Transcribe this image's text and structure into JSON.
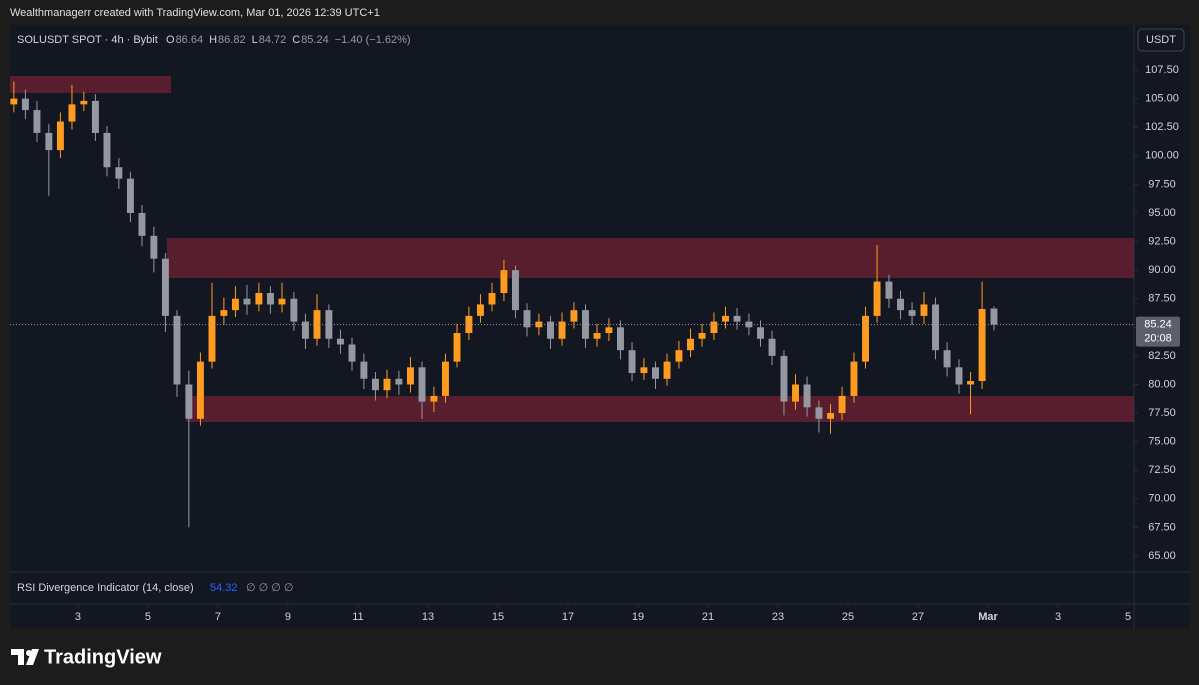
{
  "chart_data": {
    "type": "candlestick",
    "watermark": "Wealthmanagerr created with TradingView.com, Mar 01, 2026 12:39 UTC+1",
    "symbol": "SOLUSDT SPOT · 4h · Bybit",
    "ohlc_letters": [
      "O",
      "H",
      "L",
      "C"
    ],
    "change": "−1.40 (−1.62%)",
    "currency": "USDT",
    "countdown": "20:08",
    "indicator": "RSI Divergence Indicator (14, close)",
    "indicator_value": "54.32",
    "indicator_flags": "∅ ∅ ∅ ∅",
    "brand": "TradingView",
    "up_color": "#ff9b1f",
    "down_color": "#9598a1",
    "zone_color": "#b8283f",
    "grid": false,
    "xlim": [
      1.06,
      33.17
    ],
    "ylim": [
      63.6,
      111.44
    ],
    "xticks": [
      3,
      5,
      7,
      9,
      11,
      13,
      15,
      17,
      19,
      21,
      23,
      25,
      27,
      {
        "value": 29,
        "label": "Mar"
      },
      {
        "value": 31,
        "label": "3"
      },
      {
        "value": 33,
        "label": "5"
      }
    ],
    "yticks": [
      {
        "value": 65,
        "label": "65.00"
      },
      {
        "value": 67.5,
        "label": "67.50"
      },
      {
        "value": 70,
        "label": "70.00"
      },
      {
        "value": 72.5,
        "label": "72.50"
      },
      {
        "value": 75,
        "label": "75.00"
      },
      {
        "value": 77.5,
        "label": "77.50"
      },
      {
        "value": 80,
        "label": "80.00"
      },
      {
        "value": 82.5,
        "label": "82.50"
      },
      {
        "value": 85,
        "label": "85.00"
      },
      {
        "value": 87.5,
        "label": "87.50"
      },
      {
        "value": 90,
        "label": "90.00"
      },
      {
        "value": 92.5,
        "label": "92.50"
      },
      {
        "value": 95,
        "label": "95.00"
      },
      {
        "value": 97.5,
        "label": "97.50"
      },
      {
        "value": 100,
        "label": "100.00"
      },
      {
        "value": 102.5,
        "label": "102.50"
      },
      {
        "value": 105,
        "label": "105.00"
      },
      {
        "value": 107.5,
        "label": "107.50"
      }
    ],
    "zones": [
      {
        "x": [
          1.06,
          5.66
        ],
        "y": [
          105.49,
          106.98
        ]
      },
      {
        "x": [
          5.54,
          33.17
        ],
        "y": [
          89.31,
          92.81
        ]
      },
      {
        "x": [
          6.09,
          33.17
        ],
        "y": [
          76.72,
          78.99
        ]
      }
    ],
    "x": [
      1.17,
      1.5,
      1.83,
      2.17,
      2.5,
      2.83,
      3.17,
      3.5,
      3.83,
      4.17,
      4.5,
      4.83,
      5.17,
      5.5,
      5.83,
      6.17,
      6.5,
      6.83,
      7.17,
      7.5,
      7.83,
      8.17,
      8.5,
      8.83,
      9.17,
      9.5,
      9.83,
      10.17,
      10.5,
      10.83,
      11.17,
      11.5,
      11.83,
      12.17,
      12.5,
      12.83,
      13.17,
      13.5,
      13.83,
      14.17,
      14.5,
      14.83,
      15.17,
      15.5,
      15.83,
      16.17,
      16.5,
      16.83,
      17.17,
      17.5,
      17.83,
      18.17,
      18.5,
      18.83,
      19.17,
      19.5,
      19.83,
      20.17,
      20.5,
      20.83,
      21.17,
      21.5,
      21.83,
      22.17,
      22.5,
      22.83,
      23.17,
      23.5,
      23.83,
      24.17,
      24.5,
      24.83,
      25.17,
      25.5,
      25.83,
      26.17,
      26.5,
      26.83,
      27.17,
      27.5,
      27.83,
      28.17,
      28.5,
      28.83,
      29.17
    ],
    "open": [
      104.5,
      105,
      104,
      102,
      100.5,
      103,
      104.5,
      104.8,
      102,
      99,
      98,
      95,
      93,
      91,
      86,
      80,
      77,
      82,
      86,
      86.5,
      87.5,
      87,
      88,
      87,
      87.5,
      85.5,
      84,
      86.5,
      84,
      83.5,
      82,
      80.5,
      79.5,
      80.5,
      80,
      81.5,
      78.5,
      79,
      82,
      84.5,
      86,
      87,
      88,
      90,
      86.5,
      85,
      85.5,
      84,
      85.5,
      86.5,
      84,
      84.5,
      85,
      83,
      81,
      81.5,
      80.5,
      82,
      83,
      84,
      84.5,
      85.5,
      86,
      85.5,
      85,
      84,
      82.5,
      78.5,
      80,
      78,
      77,
      77.5,
      79,
      82,
      86,
      89,
      87.5,
      86.5,
      86,
      87,
      83,
      81.5,
      80,
      80.3,
      86.64
    ],
    "high": [
      106.5,
      105.8,
      104.8,
      102.8,
      103.8,
      106.2,
      105.6,
      105.4,
      102.6,
      99.8,
      98.6,
      95.7,
      93.8,
      91.5,
      86.5,
      81.2,
      82.8,
      88.9,
      87.6,
      88.6,
      88.7,
      88.9,
      88.6,
      88.9,
      88.1,
      86.2,
      87.9,
      87,
      84.8,
      84.1,
      82.7,
      81.1,
      81.3,
      81.2,
      82.4,
      82,
      79.8,
      82.7,
      85.3,
      86.8,
      87.9,
      88.9,
      90.9,
      90.4,
      87.1,
      86.2,
      86,
      86.3,
      87.2,
      87,
      85.3,
      85.8,
      85.6,
      83.7,
      82.3,
      82,
      82.7,
      83.8,
      84.9,
      85.3,
      86.3,
      86.8,
      86.7,
      86.2,
      85.6,
      84.7,
      83,
      80.9,
      80.7,
      78.6,
      78.3,
      79.8,
      82.8,
      86.8,
      92.2,
      89.6,
      88.2,
      87.2,
      88.1,
      87.6,
      83.7,
      82.2,
      81.1,
      89,
      86.82
    ],
    "low": [
      103.8,
      103.2,
      101.2,
      96.5,
      99.8,
      102.3,
      103.9,
      101.3,
      98.2,
      97.1,
      94.2,
      92.1,
      89.8,
      84.6,
      78.9,
      67.5,
      76.4,
      81.4,
      85.2,
      85.9,
      86.1,
      86.4,
      86.2,
      86.3,
      84.7,
      83.1,
      83.4,
      83.2,
      82.7,
      81.2,
      79.6,
      78.6,
      78.8,
      79.1,
      79.3,
      77,
      77.6,
      78.4,
      81.5,
      83.9,
      85.4,
      86.4,
      87.3,
      85.8,
      84.2,
      84.3,
      83.1,
      83.4,
      84.9,
      83.2,
      83.3,
      83.8,
      82.2,
      80.3,
      80.4,
      79.6,
      79.9,
      81.4,
      82.4,
      83.3,
      83.9,
      84.9,
      84.8,
      84.3,
      83.3,
      81.7,
      77.3,
      77.8,
      77.2,
      75.8,
      75.7,
      76.9,
      78.4,
      81.4,
      85.4,
      86.7,
      85.7,
      85.2,
      85.3,
      82.2,
      80.7,
      79.2,
      77.4,
      79.6,
      84.72
    ],
    "close": [
      105,
      104,
      102,
      100.5,
      103,
      104.5,
      104.8,
      102,
      99,
      98,
      95,
      93,
      91,
      86,
      80,
      77,
      82,
      86,
      86.5,
      87.5,
      87,
      88,
      87,
      87.5,
      85.5,
      84,
      86.5,
      84,
      83.5,
      82,
      80.5,
      79.5,
      80.5,
      80,
      81.5,
      78.5,
      79,
      82,
      84.5,
      86,
      87,
      88,
      90,
      86.5,
      85,
      85.5,
      84,
      85.5,
      86.5,
      84,
      84.5,
      85,
      83,
      81,
      81.5,
      80.5,
      82,
      83,
      84,
      84.5,
      85.5,
      86,
      85.5,
      85,
      84,
      82.5,
      78.5,
      80,
      78,
      77,
      77.5,
      79,
      82,
      86,
      89,
      87.5,
      86.5,
      86,
      87,
      83,
      81.5,
      80,
      80.3,
      86.6,
      85.24
    ]
  }
}
